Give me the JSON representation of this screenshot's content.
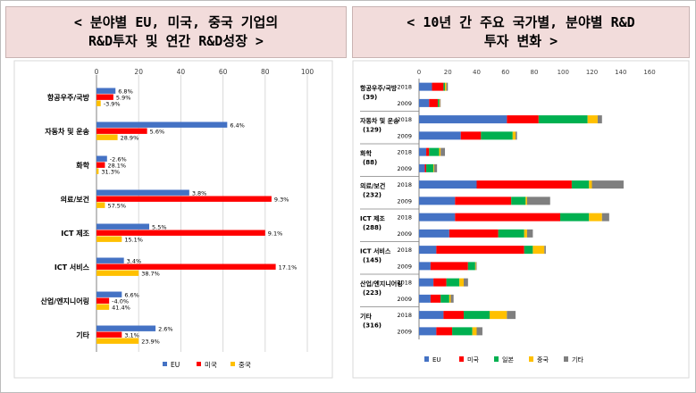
{
  "left_header": {
    "line1": "< 분야별 EU, 미국, 중국 기업의",
    "line2": "R&D투자 및 연간 R&D성장 >"
  },
  "right_header": {
    "line1": "< 10년 간 주요 국가별, 분야별 R&D",
    "line2": "투자 변화 >"
  },
  "colors": {
    "EU": "#4472c4",
    "미국": "#ff0000",
    "중국": "#ffc000",
    "일본": "#00b050",
    "기타": "#7f7f7f"
  },
  "chart_data": [
    {
      "type": "bar",
      "orientation": "horizontal",
      "title": "",
      "xlabel": "",
      "ylabel": "",
      "xlim": [
        0,
        100
      ],
      "x_ticks": [
        0,
        20,
        40,
        60,
        80,
        100
      ],
      "grid": true,
      "legend": "bottom",
      "categories": [
        "항공우주/국방",
        "자동차 및 운송",
        "화학",
        "의료/보건",
        "ICT 제조",
        "ICT 서비스",
        "산업/엔지니어링",
        "기타"
      ],
      "series": [
        {
          "name": "EU",
          "color": "#4472c4",
          "values": [
            9,
            62,
            5,
            44,
            25,
            13,
            12,
            28
          ],
          "labels": [
            "6.8%",
            "6.4%",
            "-2.6%",
            "3.8%",
            "5.5%",
            "3.4%",
            "6.6%",
            "2.6%"
          ]
        },
        {
          "name": "미국",
          "color": "#ff0000",
          "values": [
            8,
            24,
            4,
            83,
            80,
            85,
            6,
            12
          ],
          "labels": [
            "5.9%",
            "5.6%",
            "28.1%",
            "9.3%",
            "9.1%",
            "17.1%",
            "-4.0%",
            "3.1%"
          ]
        },
        {
          "name": "중국",
          "color": "#ffc000",
          "values": [
            2,
            10,
            1,
            4,
            12,
            20,
            6,
            20
          ],
          "labels": [
            "-3.9%",
            "28.9%",
            "31.3%",
            "57.5%",
            "15.1%",
            "38.7%",
            "41.4%",
            "23.9%"
          ]
        }
      ]
    },
    {
      "type": "bar",
      "orientation": "horizontal",
      "stacked": true,
      "title": "",
      "xlabel": "",
      "ylabel": "",
      "xlim": [
        0,
        160
      ],
      "x_ticks": [
        0,
        20,
        40,
        60,
        80,
        100,
        120,
        140,
        160
      ],
      "grid": false,
      "legend": "bottom",
      "groups": [
        {
          "name": "항공우주/국방",
          "count": "(39)",
          "years": [
            "2018",
            "2009"
          ]
        },
        {
          "name": "자동차 및 운송",
          "count": "(129)",
          "years": [
            "2018",
            "2009"
          ]
        },
        {
          "name": "화학",
          "count": "(88)",
          "years": [
            "2018",
            "2009"
          ]
        },
        {
          "name": "의료/보건",
          "count": "(232)",
          "years": [
            "2018",
            "2009"
          ]
        },
        {
          "name": "ICT 제조",
          "count": "(288)",
          "years": [
            "2018",
            "2009"
          ]
        },
        {
          "name": "ICT 서비스",
          "count": "(145)",
          "years": [
            "2018",
            "2009"
          ]
        },
        {
          "name": "산업/엔지니어링",
          "count": "(223)",
          "years": [
            "2018",
            "2009"
          ]
        },
        {
          "name": "기타",
          "count": "(316)",
          "years": [
            "2018",
            "2009"
          ]
        }
      ],
      "series": [
        {
          "name": "EU",
          "color": "#4472c4",
          "values": [
            9,
            7,
            61,
            29,
            5,
            4,
            40,
            25,
            25,
            21,
            12,
            8,
            10,
            8,
            17,
            12
          ]
        },
        {
          "name": "미국",
          "color": "#ff0000",
          "values": [
            8,
            6,
            22,
            14,
            2,
            1,
            66,
            39,
            73,
            34,
            61,
            26,
            9,
            7,
            14,
            11
          ]
        },
        {
          "name": "일본",
          "color": "#00b050",
          "values": [
            1,
            1,
            34,
            22,
            7,
            5,
            12,
            10,
            20,
            18,
            6,
            5,
            9,
            6,
            18,
            14
          ]
        },
        {
          "name": "중국",
          "color": "#ffc000",
          "values": [
            1,
            0.5,
            7,
            2,
            1,
            0.5,
            2,
            1,
            9,
            2,
            8,
            0.5,
            3,
            1,
            12,
            3
          ]
        },
        {
          "name": "기타",
          "color": "#7f7f7f",
          "values": [
            1,
            0.5,
            3,
            1,
            3,
            2,
            22,
            16,
            5,
            4,
            1,
            0.5,
            3,
            2,
            6,
            4
          ]
        }
      ]
    }
  ]
}
